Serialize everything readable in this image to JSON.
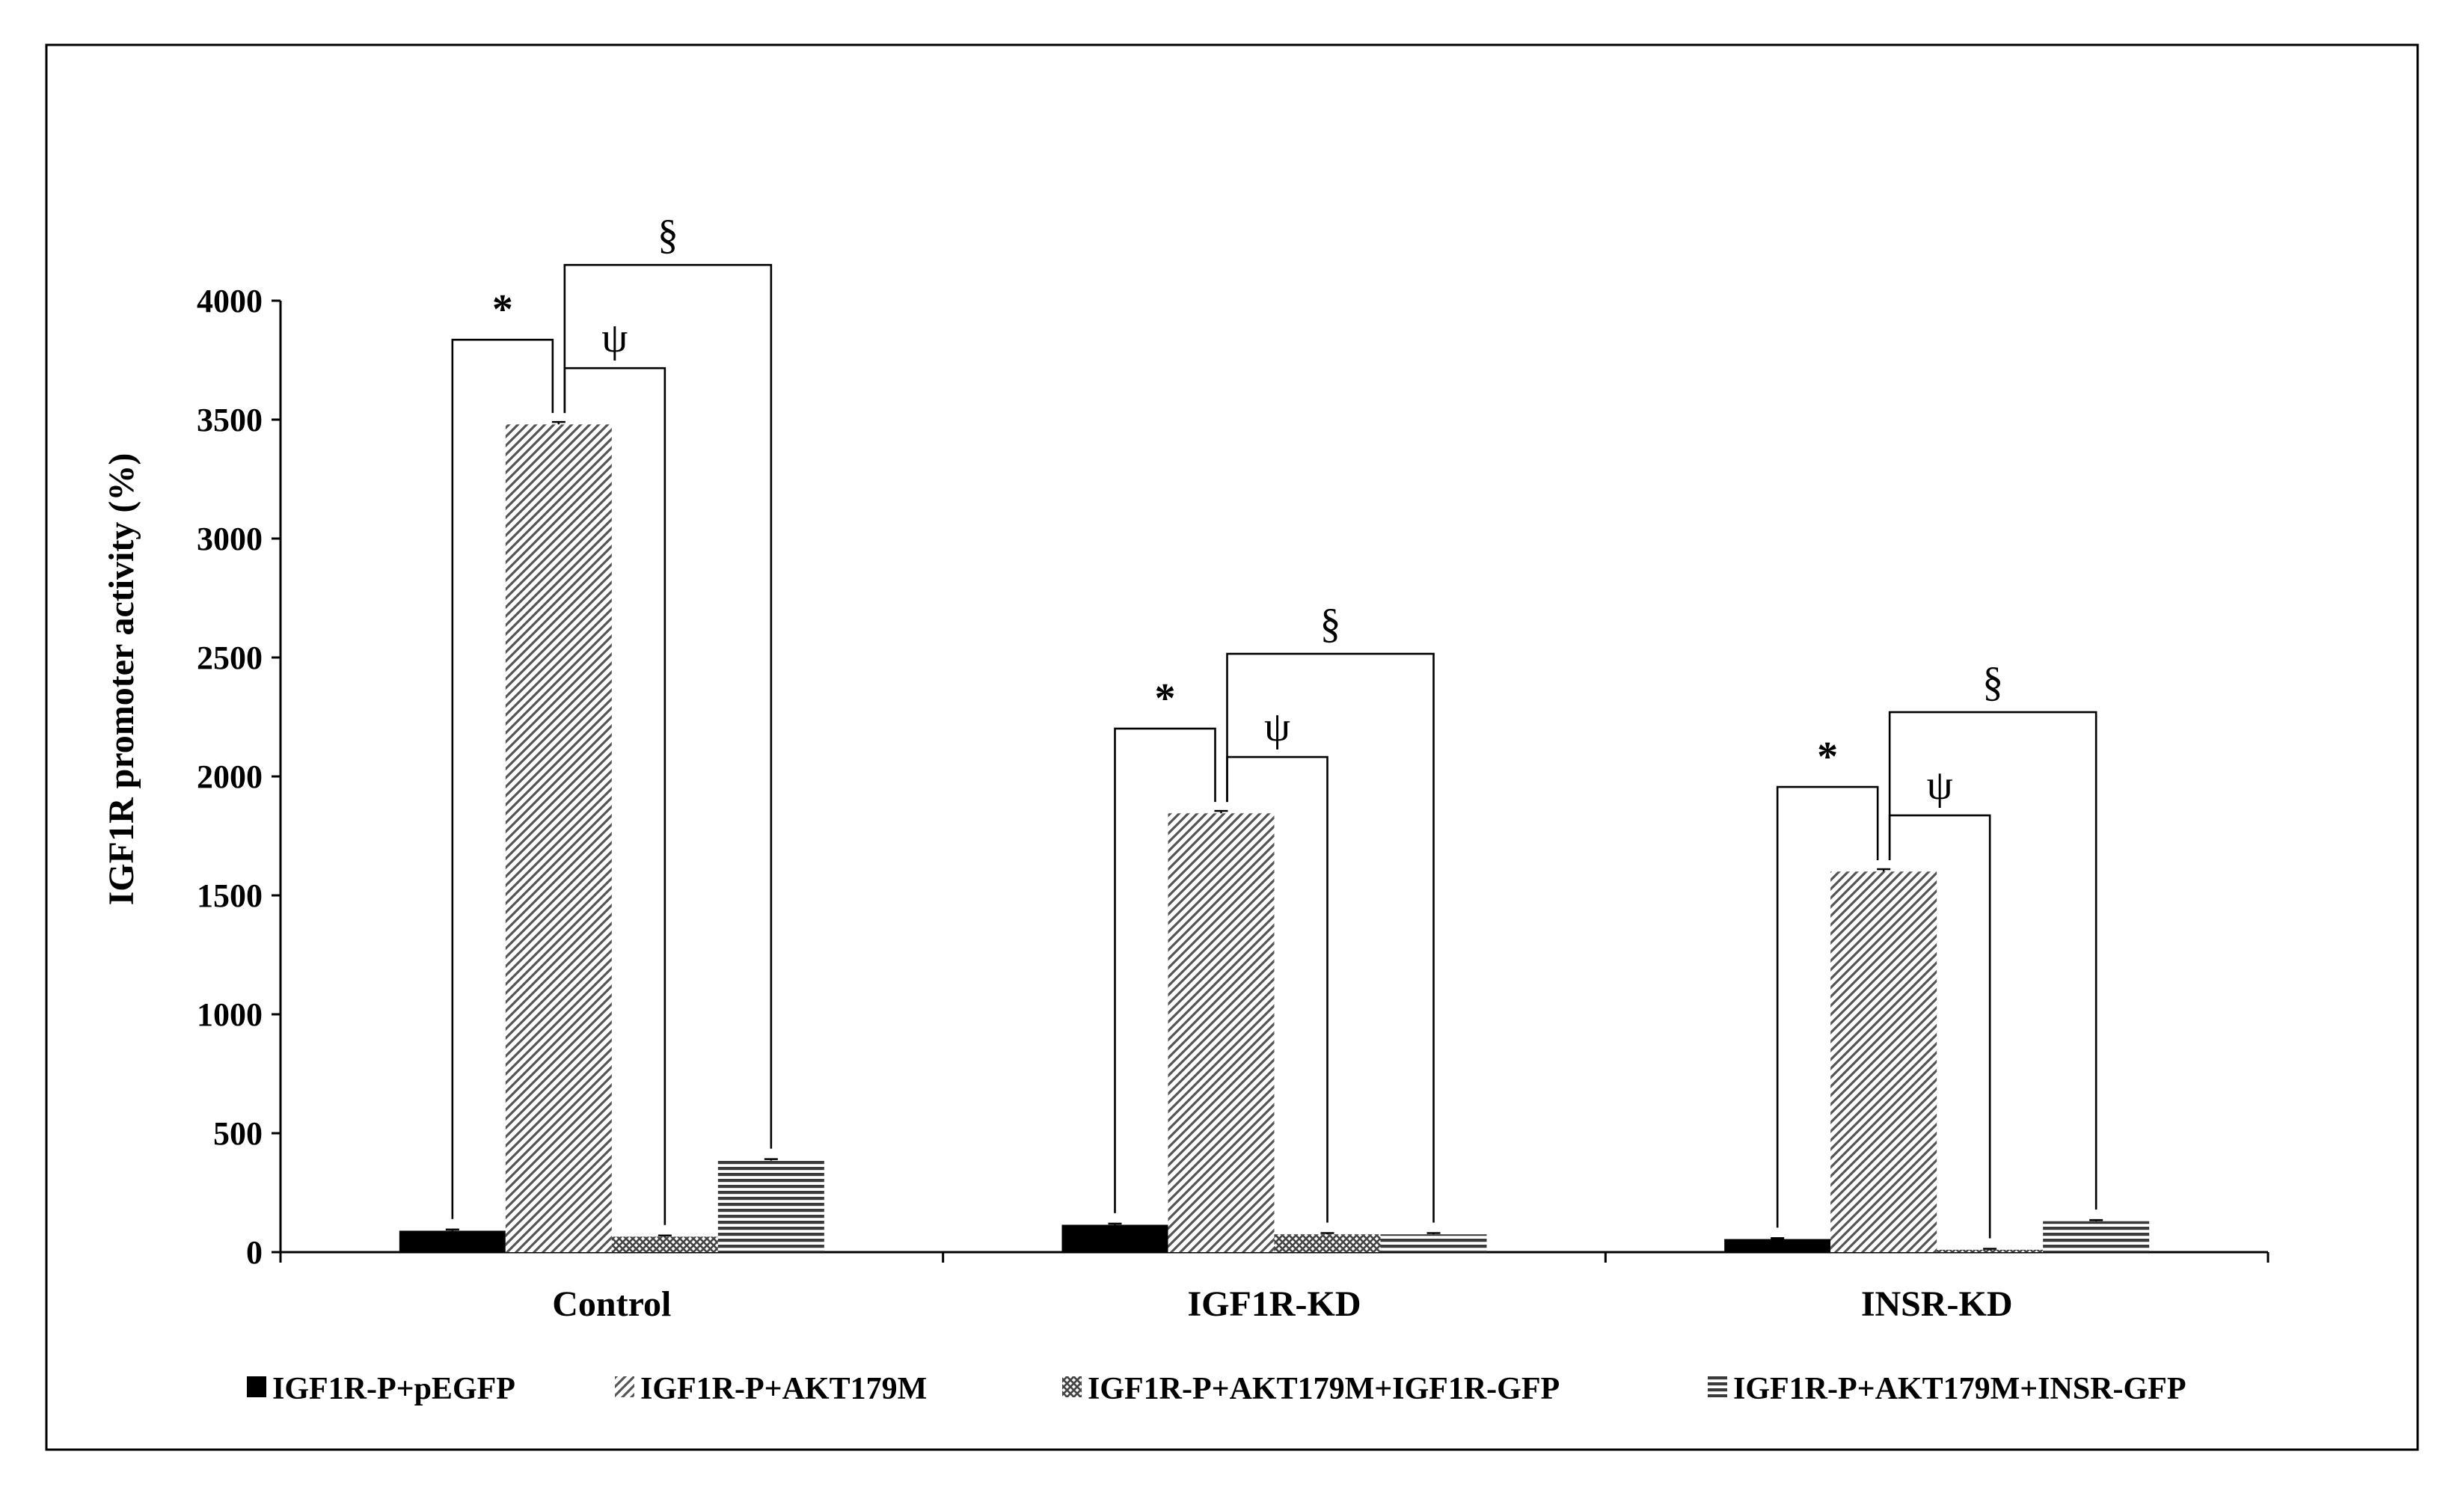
{
  "chart_data": {
    "type": "bar",
    "ylabel": "IGF1R promoter activity (%)",
    "xlabel": "",
    "ylim": [
      0,
      4000
    ],
    "yticks": [
      0,
      500,
      1000,
      1500,
      2000,
      2500,
      3000,
      3500,
      4000
    ],
    "categories": [
      "Control",
      "IGF1R-KD",
      "INSR-KD"
    ],
    "series": [
      {
        "name": "IGF1R-P+pEGFP",
        "values": [
          90,
          115,
          55
        ],
        "errors": [
          5,
          5,
          4
        ],
        "pattern": "solid",
        "color": "#000000"
      },
      {
        "name": "IGF1R-P+AKT179M",
        "values": [
          3480,
          1845,
          1600
        ],
        "errors": [
          10,
          10,
          10
        ],
        "pattern": "diagonal",
        "color": "#555555"
      },
      {
        "name": "IGF1R-P+AKT179M+IGF1R-GFP",
        "values": [
          65,
          75,
          10
        ],
        "errors": [
          5,
          5,
          4
        ],
        "pattern": "crosshatch",
        "color": "#555555"
      },
      {
        "name": "IGF1R-P+AKT179M+INSR-GFP",
        "values": [
          385,
          75,
          130
        ],
        "errors": [
          6,
          5,
          5
        ],
        "pattern": "horizontal",
        "color": "#555555"
      }
    ],
    "legend_position": "bottom",
    "grid": false,
    "significance": {
      "markers": [
        "*",
        "ψ",
        "§"
      ],
      "comparisons": "each marker compares IGF1R-P+AKT179M with the other bars in its group: * vs IGF1R-P+pEGFP, ψ vs IGF1R-P+AKT179M+IGF1R-GFP, § vs IGF1R-P+AKT179M+INSR-GFP"
    }
  }
}
